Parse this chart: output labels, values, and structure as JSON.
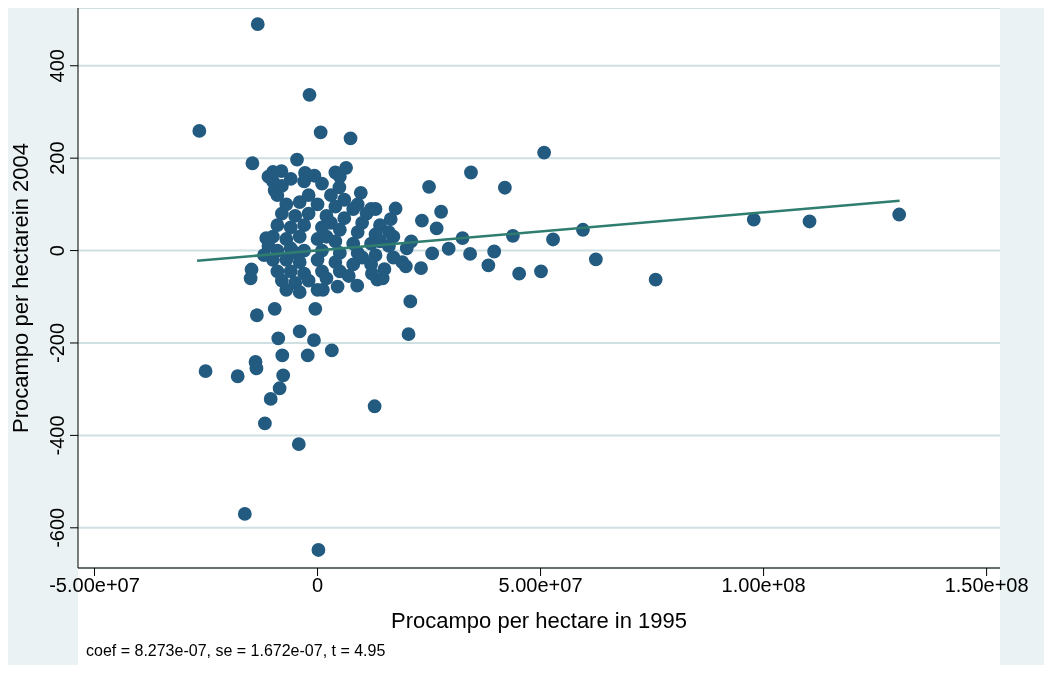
{
  "chart_data": {
    "type": "scatter",
    "xlabel": "Procampo per hectare in 1995",
    "ylabel": "Procampo per hectarein 2004",
    "annotations": [
      "coef = 8.273e-07, se = 1.672e-07, t = 4.95"
    ],
    "xlim": [
      -53700000.0,
      153000000.0
    ],
    "ylim": [
      -687,
      525
    ],
    "xticks": [
      {
        "value": -50000000.0,
        "label": "-5.00e+07"
      },
      0,
      {
        "value": 50000000.0,
        "label": "5.00e+07"
      },
      {
        "value": 100000000.0,
        "label": "1.00e+08"
      },
      {
        "value": 150000000.0,
        "label": "1.50e+08"
      }
    ],
    "yticks": [
      -600,
      -400,
      -200,
      0,
      200,
      400
    ],
    "grid": "y",
    "legend": false,
    "marker": "circle",
    "series": [
      {
        "color": "#225a80",
        "x": [
          -13400000.0,
          -26500000.0,
          -1800000.0,
          700000.0,
          7400000.0,
          -14600000.0,
          -4600000.0,
          50800000.0,
          34400000.0,
          42000000.0,
          25000000.0,
          97800000.0,
          110300000.0,
          130400000.0,
          59500000.0,
          43800000.0,
          52800000.0,
          62400000.0,
          75800000.0,
          50100000.0,
          45200000.0,
          38300000.0,
          34200000.0,
          39600000.0,
          32500000.0,
          27700000.0,
          23400000.0,
          17500000.0,
          26700000.0,
          29400000.0,
          25700000.0,
          23200000.0,
          19800000.0,
          20800000.0,
          20400000.0,
          12800000.0,
          3200000.0,
          -800000.0,
          -500000.0,
          -2200000.0,
          -7900000.0,
          -4000000.0,
          -8800000.0,
          -13600000.0,
          -9600000.0,
          -13900000.0,
          -13700000.0,
          -7700000.0,
          -8500000.0,
          -10500000.0,
          -11800000.0,
          -4200000.0,
          -16300000.0,
          200000.0,
          -25100000.0,
          -17900000.0,
          4500000.0,
          1200000.0,
          8900000.0,
          13400000.0,
          12200000.0,
          14600000.0,
          -15000000.0,
          -14800000.0,
          -11500000.0,
          6400000.0,
          4000000.0,
          -8100000.0,
          -2800000.0,
          -700000.0,
          -9600000.0,
          4900000.0,
          9700000.0,
          12000000.0,
          16400000.0,
          -9000000.0,
          -8000000.0,
          -10000000.0,
          -6000000.0,
          -3000000.0,
          1000000.0,
          3000000.0,
          6000000.0,
          -7000000.0,
          -4000000.0,
          0,
          4000000.0,
          8000000.0,
          11000000.0,
          -8000000.0,
          -5000000.0,
          -2000000.0,
          2000000.0,
          6000000.0,
          10000000.0,
          14000000.0,
          -9000000.0,
          -6000000.0,
          -3000000.0,
          1000000.0,
          5000000.0,
          9000000.0,
          13000000.0,
          17000000.0,
          -10000000.0,
          -7000000.0,
          -4000000.0,
          0,
          4000000.0,
          8000000.0,
          12000000.0,
          16000000.0,
          20000000.0,
          -9000000.0,
          -6000000.0,
          -3000000.0,
          1000000.0,
          5000000.0,
          9000000.0,
          13000000.0,
          17000000.0,
          -10000000.0,
          -7000000.0,
          -4000000.0,
          0,
          4000000.0,
          8000000.0,
          12000000.0,
          -9000000.0,
          -6000000.0,
          -3000000.0,
          1000000.0,
          5000000.0,
          -8000000.0,
          -5000000.0,
          -2000000.0,
          2000000.0,
          -7000000.0,
          -4000000.0,
          0,
          -11000000.0,
          -12000000.0,
          -11000000.0,
          -10000000.0,
          5000000.0,
          16000000.0,
          19000000.0,
          15000000.0,
          21000000.0,
          7000000.0,
          10000000.0,
          14000000.0,
          -5000000.0,
          2000000.0,
          3000000.0,
          -2000000.0,
          9000000.0,
          13000000.0
        ],
        "values": [
          490,
          259,
          337,
          256,
          243,
          189,
          197,
          212,
          169,
          136,
          138,
          67,
          63,
          78,
          45,
          32,
          24,
          -19,
          -63,
          -45,
          -50,
          -32,
          -7,
          -2,
          27,
          84,
          65,
          91,
          48,
          4,
          -6,
          -38,
          -34,
          -110,
          -181,
          -337,
          -216,
          -194,
          -126,
          -227,
          -227,
          -175,
          -190,
          -140,
          -126,
          -241,
          -255,
          -270,
          -298,
          -321,
          -374,
          -419,
          -570,
          -648,
          -261,
          -272,
          -78,
          -85,
          -76,
          -63,
          -50,
          -60,
          -60,
          -41,
          27,
          179,
          169,
          172,
          168,
          162,
          130,
          137,
          125,
          90,
          68,
          120,
          140,
          150,
          155,
          150,
          145,
          120,
          110,
          100,
          105,
          100,
          95,
          90,
          80,
          80,
          75,
          80,
          75,
          70,
          60,
          55,
          55,
          50,
          55,
          50,
          45,
          40,
          35,
          30,
          30,
          25,
          30,
          25,
          20,
          15,
          15,
          10,
          5,
          0,
          5,
          0,
          0,
          -5,
          -5,
          -10,
          -15,
          -20,
          -20,
          -25,
          -20,
          -25,
          -30,
          -30,
          -45,
          -45,
          -50,
          -45,
          -45,
          -65,
          -70,
          -65,
          -60,
          -85,
          -90,
          -85,
          10,
          -10,
          160,
          170,
          160,
          40,
          -25,
          -40,
          20,
          -55,
          -15,
          20,
          -5,
          30,
          60,
          120,
          100,
          90
        ]
      },
      {
        "type": "line",
        "marker": "none",
        "color": "#2e7d6e",
        "x": [
          -27000000.0,
          130500000.0
        ],
        "values": [
          -22,
          108
        ]
      }
    ]
  }
}
